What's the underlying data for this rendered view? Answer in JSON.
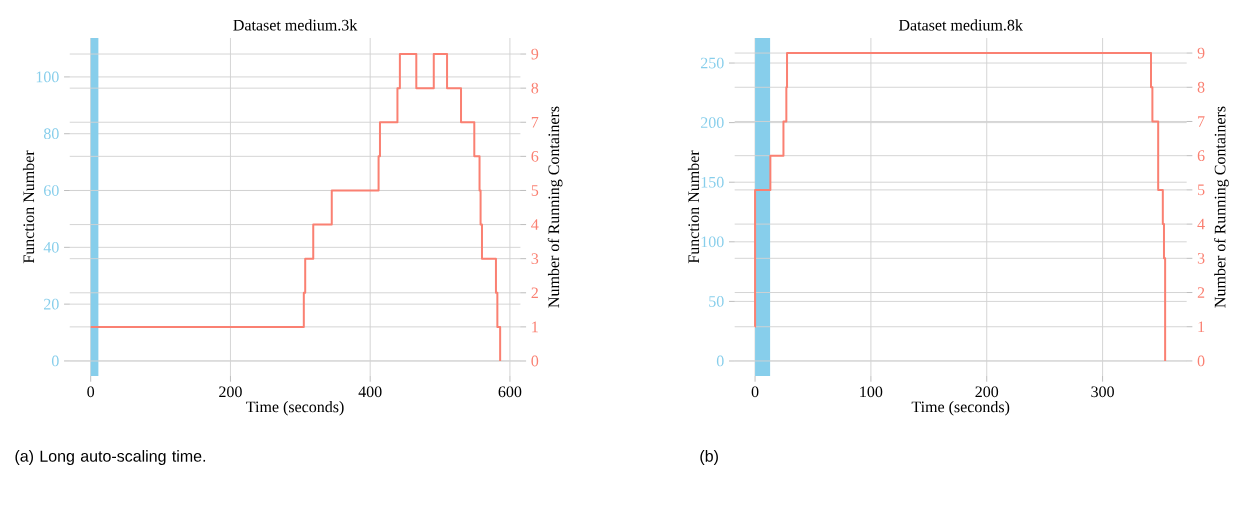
{
  "chart_data": [
    {
      "type": "step",
      "title": "Dataset medium.3k",
      "xlabel": "Time (seconds)",
      "ylabel": "Function Number",
      "y2label": "Number of Running Containers",
      "xlim": [
        -30,
        615
      ],
      "xticks": [
        0,
        200,
        400,
        600
      ],
      "ylim": [
        -5.3,
        113.7
      ],
      "yticks": [
        0,
        20,
        40,
        60,
        80,
        100
      ],
      "y2lim": [
        -0.44,
        9.47
      ],
      "y2ticks": [
        0,
        1,
        2,
        3,
        4,
        5,
        6,
        7,
        8,
        9
      ],
      "grid": true,
      "bands": [
        {
          "axis": "x",
          "from": 0,
          "to": 11,
          "color": "#87ceeb"
        }
      ],
      "series": [
        {
          "axis": "y2",
          "color": "#fa8072",
          "x": [
            0,
            305,
            307,
            318.5,
            345,
            412,
            414,
            439,
            442.5,
            466,
            491,
            510,
            530,
            549,
            556.5,
            558,
            560,
            580,
            582,
            586
          ],
          "values": [
            1,
            2,
            3,
            4,
            5,
            6,
            7,
            8,
            9,
            8,
            9,
            8,
            7,
            6,
            5,
            4,
            3,
            2,
            1,
            0
          ]
        }
      ],
      "annotations": [
        "(a) Long auto-scaling time."
      ]
    },
    {
      "type": "step",
      "title": "Dataset medium.8k",
      "xlabel": "Time (seconds)",
      "ylabel": "Function Number",
      "y2label": "Number of Running Containers",
      "xlim": [
        -17.6,
        372.6
      ],
      "xticks": [
        0,
        100,
        200,
        300
      ],
      "ylim": [
        -12.6,
        271
      ],
      "yticks": [
        0,
        50,
        100,
        150,
        200,
        250
      ],
      "y2lim": [
        -0.44,
        9.44
      ],
      "y2ticks": [
        0,
        1,
        2,
        3,
        4,
        5,
        6,
        7,
        8,
        9
      ],
      "grid": true,
      "bands": [
        {
          "axis": "x",
          "from": 0,
          "to": 13,
          "color": "#87ceeb"
        }
      ],
      "series": [
        {
          "axis": "y2",
          "color": "#fa8072",
          "x": [
            0,
            0.01,
            13.2,
            24.5,
            27,
            27.6,
            341.8,
            343,
            348,
            352,
            353,
            354
          ],
          "values": [
            1,
            5,
            6,
            7,
            8,
            9,
            8,
            7,
            5,
            4,
            3,
            0
          ]
        }
      ],
      "annotations": [
        "(b)"
      ]
    }
  ]
}
